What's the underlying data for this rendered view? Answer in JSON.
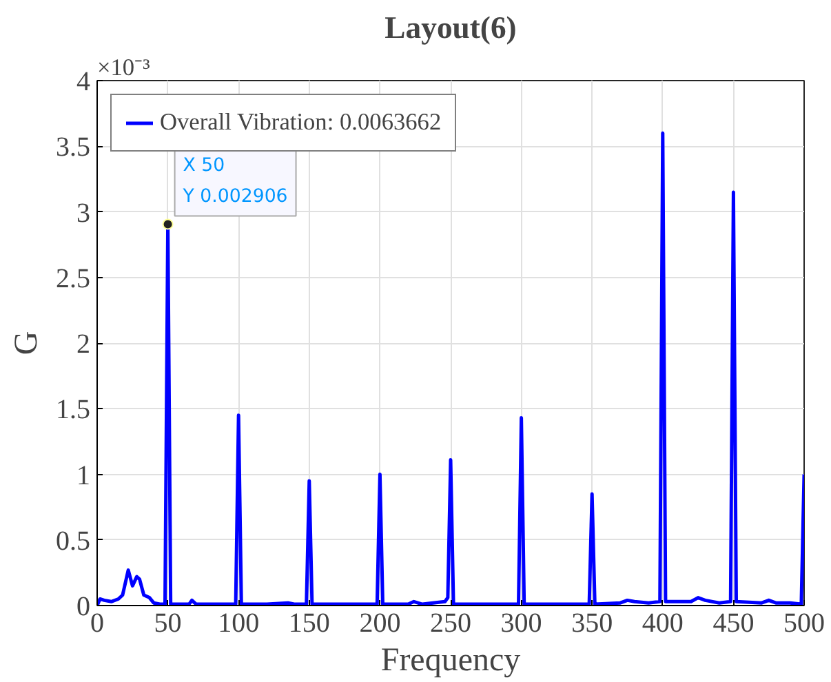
{
  "chart_data": {
    "type": "line",
    "title": "Layout(6)",
    "xlabel": "Frequency",
    "ylabel": "G",
    "series": [
      {
        "name": "Overall Vibration: 0.0063662",
        "color": "#0000ff",
        "x": [
          0,
          2,
          5,
          10,
          15,
          18,
          22,
          25,
          28,
          30,
          33,
          37,
          40,
          45,
          48,
          50,
          52,
          60,
          65,
          67,
          70,
          90,
          98,
          100,
          102,
          120,
          135,
          140,
          148,
          150,
          152,
          180,
          198,
          200,
          202,
          220,
          224,
          230,
          246,
          248,
          250,
          252,
          270,
          298,
          300,
          302,
          330,
          348,
          350,
          352,
          370,
          375,
          380,
          390,
          398,
          400,
          402,
          420,
          425,
          430,
          440,
          448,
          450,
          452,
          470,
          475,
          480,
          490,
          498,
          500
        ],
        "values": [
          0,
          0.05,
          0.04,
          0.03,
          0.05,
          0.08,
          0.27,
          0.15,
          0.22,
          0.2,
          0.08,
          0.06,
          0.02,
          0.01,
          0.01,
          2.906,
          0.01,
          0.01,
          0.01,
          0.04,
          0.01,
          0.01,
          0.01,
          1.45,
          0.01,
          0.01,
          0.02,
          0.01,
          0.01,
          0.95,
          0.01,
          0.01,
          0.01,
          1.0,
          0.01,
          0.01,
          0.03,
          0.01,
          0.03,
          0.06,
          1.11,
          0.01,
          0.01,
          0.01,
          1.43,
          0.01,
          0.01,
          0.01,
          0.85,
          0.01,
          0.02,
          0.04,
          0.03,
          0.02,
          0.03,
          3.6,
          0.03,
          0.03,
          0.06,
          0.04,
          0.02,
          0.03,
          3.15,
          0.03,
          0.02,
          0.04,
          0.02,
          0.02,
          0.01,
          1.0
        ]
      }
    ],
    "xlim": [
      0,
      500
    ],
    "xticks": [
      0,
      50,
      100,
      150,
      200,
      250,
      300,
      350,
      400,
      450,
      500
    ],
    "ylim": [
      0,
      4
    ],
    "yticks": [
      0,
      0.5,
      1,
      1.5,
      2,
      2.5,
      3,
      3.5,
      4
    ],
    "annotations": [
      "×10⁻³",
      {
        "text": "X 50\nY 0.002906",
        "x": 50,
        "y": 2.906
      }
    ],
    "grid": true,
    "legend": "top left",
    "line_style": "solid"
  }
}
